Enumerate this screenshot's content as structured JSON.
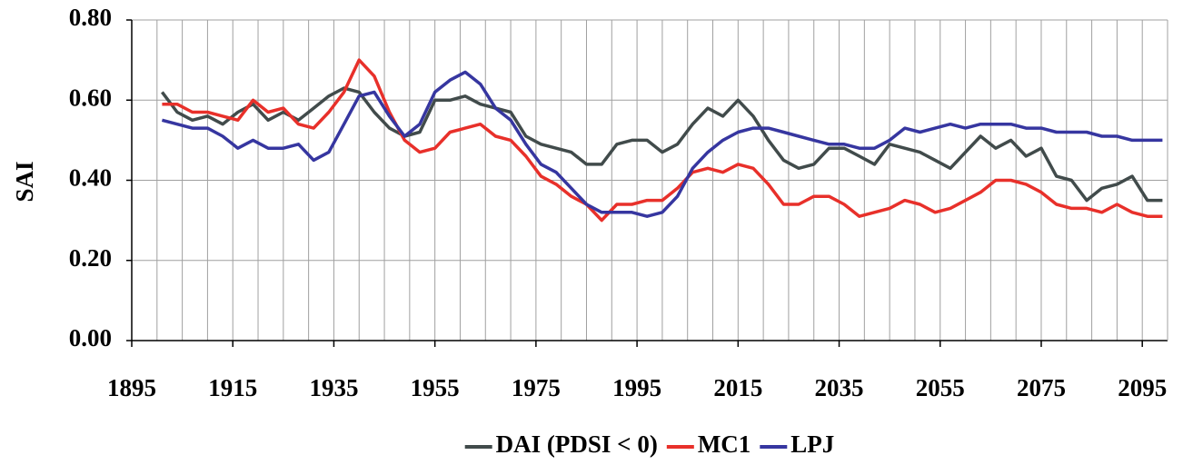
{
  "chart_data": {
    "type": "line",
    "x": [
      1901,
      1904,
      1907,
      1910,
      1913,
      1916,
      1919,
      1922,
      1925,
      1928,
      1931,
      1934,
      1937,
      1940,
      1943,
      1946,
      1949,
      1952,
      1955,
      1958,
      1961,
      1964,
      1967,
      1970,
      1973,
      1976,
      1979,
      1982,
      1985,
      1988,
      1991,
      1994,
      1997,
      2000,
      2003,
      2006,
      2009,
      2012,
      2015,
      2018,
      2021,
      2024,
      2027,
      2030,
      2033,
      2036,
      2039,
      2042,
      2045,
      2048,
      2051,
      2054,
      2057,
      2060,
      2063,
      2066,
      2069,
      2072,
      2075,
      2078,
      2081,
      2084,
      2087,
      2090,
      2093,
      2096,
      2099
    ],
    "series": [
      {
        "name": "DAI (PDSI < 0)",
        "color": "#414b4b",
        "values": [
          0.62,
          0.57,
          0.55,
          0.56,
          0.54,
          0.57,
          0.59,
          0.55,
          0.57,
          0.55,
          0.58,
          0.61,
          0.63,
          0.62,
          0.57,
          0.53,
          0.51,
          0.52,
          0.6,
          0.6,
          0.61,
          0.59,
          0.58,
          0.57,
          0.51,
          0.49,
          0.48,
          0.47,
          0.44,
          0.44,
          0.49,
          0.5,
          0.5,
          0.47,
          0.49,
          0.54,
          0.58,
          0.56,
          0.6,
          0.56,
          0.5,
          0.45,
          0.43,
          0.44,
          0.48,
          0.48,
          0.46,
          0.44,
          0.49,
          0.48,
          0.47,
          0.45,
          0.43,
          0.47,
          0.51,
          0.48,
          0.5,
          0.46,
          0.48,
          0.41,
          0.4,
          0.35,
          0.38,
          0.39,
          0.41,
          0.35,
          0.35
        ]
      },
      {
        "name": "MC1",
        "color": "#e8302a",
        "values": [
          0.59,
          0.59,
          0.57,
          0.57,
          0.56,
          0.55,
          0.6,
          0.57,
          0.58,
          0.54,
          0.53,
          0.57,
          0.62,
          0.7,
          0.66,
          0.57,
          0.5,
          0.47,
          0.48,
          0.52,
          0.53,
          0.54,
          0.51,
          0.5,
          0.46,
          0.41,
          0.39,
          0.36,
          0.34,
          0.3,
          0.34,
          0.34,
          0.35,
          0.35,
          0.38,
          0.42,
          0.43,
          0.42,
          0.44,
          0.43,
          0.39,
          0.34,
          0.34,
          0.36,
          0.36,
          0.34,
          0.31,
          0.32,
          0.33,
          0.35,
          0.34,
          0.32,
          0.33,
          0.35,
          0.37,
          0.4,
          0.4,
          0.39,
          0.37,
          0.34,
          0.33,
          0.33,
          0.32,
          0.34,
          0.32,
          0.31,
          0.31
        ]
      },
      {
        "name": "LPJ",
        "color": "#3636a0",
        "values": [
          0.55,
          0.54,
          0.53,
          0.53,
          0.51,
          0.48,
          0.5,
          0.48,
          0.48,
          0.49,
          0.45,
          0.47,
          0.54,
          0.61,
          0.62,
          0.56,
          0.51,
          0.54,
          0.62,
          0.65,
          0.67,
          0.64,
          0.58,
          0.55,
          0.49,
          0.44,
          0.42,
          0.38,
          0.34,
          0.32,
          0.32,
          0.32,
          0.31,
          0.32,
          0.36,
          0.43,
          0.47,
          0.5,
          0.52,
          0.53,
          0.53,
          0.52,
          0.51,
          0.5,
          0.49,
          0.49,
          0.48,
          0.48,
          0.5,
          0.53,
          0.52,
          0.53,
          0.54,
          0.53,
          0.54,
          0.54,
          0.54,
          0.53,
          0.53,
          0.52,
          0.52,
          0.52,
          0.51,
          0.51,
          0.5,
          0.5,
          0.5
        ]
      }
    ],
    "y_label": "SAI",
    "xlim": [
      1895,
      2100
    ],
    "xticks": [
      1895,
      1915,
      1935,
      1955,
      1975,
      1995,
      2015,
      2035,
      2055,
      2075,
      2095
    ],
    "ylim": [
      0,
      0.8
    ],
    "yticks": [
      {
        "value": 0,
        "label": "0.00"
      },
      {
        "value": 0.2,
        "label": "0.20"
      },
      {
        "value": 0.4,
        "label": "0.40"
      },
      {
        "value": 0.6,
        "label": "0.60"
      },
      {
        "value": 0.8,
        "label": "0.80"
      }
    ],
    "grid": {
      "y": true,
      "x_interval": 5
    },
    "legend": "bottom"
  }
}
